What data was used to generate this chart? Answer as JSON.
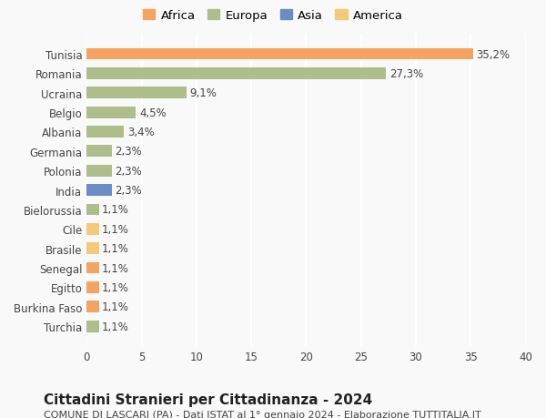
{
  "categories": [
    "Tunisia",
    "Romania",
    "Ucraina",
    "Belgio",
    "Albania",
    "Germania",
    "Polonia",
    "India",
    "Bielorussia",
    "Cile",
    "Brasile",
    "Senegal",
    "Egitto",
    "Burkina Faso",
    "Turchia"
  ],
  "values": [
    35.2,
    27.3,
    9.1,
    4.5,
    3.4,
    2.3,
    2.3,
    2.3,
    1.1,
    1.1,
    1.1,
    1.1,
    1.1,
    1.1,
    1.1
  ],
  "labels": [
    "35,2%",
    "27,3%",
    "9,1%",
    "4,5%",
    "3,4%",
    "2,3%",
    "2,3%",
    "2,3%",
    "1,1%",
    "1,1%",
    "1,1%",
    "1,1%",
    "1,1%",
    "1,1%",
    "1,1%"
  ],
  "continents": [
    "Africa",
    "Europa",
    "Europa",
    "Europa",
    "Europa",
    "Europa",
    "Europa",
    "Asia",
    "Europa",
    "America",
    "America",
    "Africa",
    "Africa",
    "Africa",
    "Europa"
  ],
  "continent_colors": {
    "Africa": "#F4A460",
    "Europa": "#ADBE8C",
    "Asia": "#6B8DC4",
    "America": "#F5C97A"
  },
  "legend_order": [
    "Africa",
    "Europa",
    "Asia",
    "America"
  ],
  "xlim": [
    0,
    40
  ],
  "xticks": [
    0,
    5,
    10,
    15,
    20,
    25,
    30,
    35,
    40
  ],
  "title": "Cittadini Stranieri per Cittadinanza - 2024",
  "subtitle": "COMUNE DI LASCARI (PA) - Dati ISTAT al 1° gennaio 2024 - Elaborazione TUTTITALIA.IT",
  "background_color": "#f9f9f9",
  "grid_color": "#ffffff",
  "bar_height": 0.6,
  "label_fontsize": 8.5,
  "tick_fontsize": 8.5,
  "title_fontsize": 11,
  "subtitle_fontsize": 8
}
